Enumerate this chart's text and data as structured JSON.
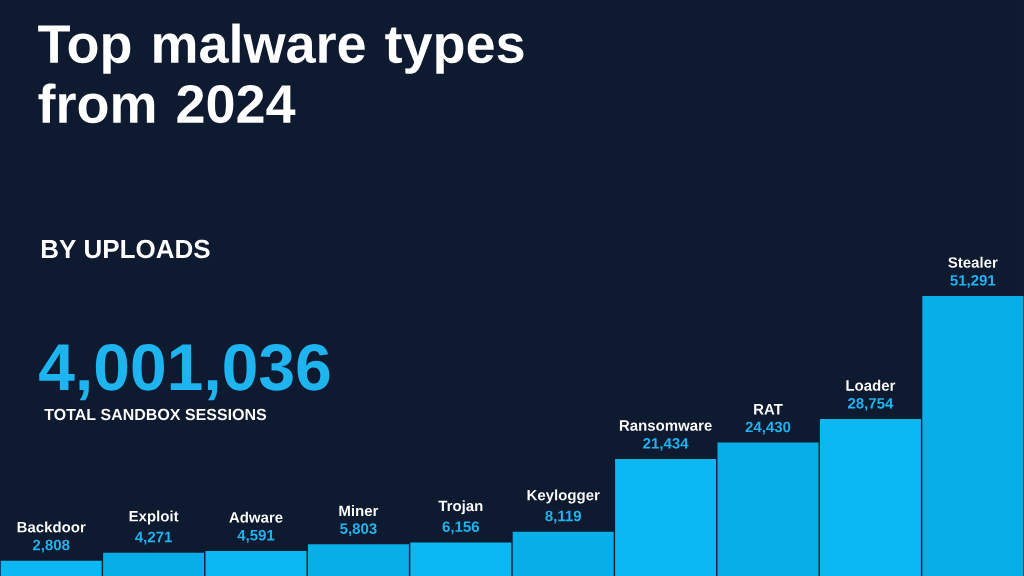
{
  "chart_data": {
    "type": "bar",
    "title": "Top malware types from 2024",
    "subtitle": "BY UPLOADS",
    "categories": [
      "Backdoor",
      "Exploit",
      "Adware",
      "Miner",
      "Trojan",
      "Keylogger",
      "Ransomware",
      "RAT",
      "Loader",
      "Stealer"
    ],
    "values": [
      2808,
      4271,
      4591,
      5803,
      6156,
      8119,
      21434,
      24430,
      28754,
      51291
    ],
    "value_labels": [
      "2,808",
      "4,271",
      "4,591",
      "5,803",
      "6,156",
      "8,119",
      "21,434",
      "24,430",
      "28,754",
      "51,291"
    ],
    "colors": [
      "#0bb8f2",
      "#08aee8",
      "#0bb8f2",
      "#08aee8",
      "#0bb8f2",
      "#08aee8",
      "#0bb8f2",
      "#08aee8",
      "#0bb8f2",
      "#08aee8"
    ],
    "annotations": [
      "4,001,036",
      "TOTAL SANDBOX SESSIONS"
    ]
  }
}
